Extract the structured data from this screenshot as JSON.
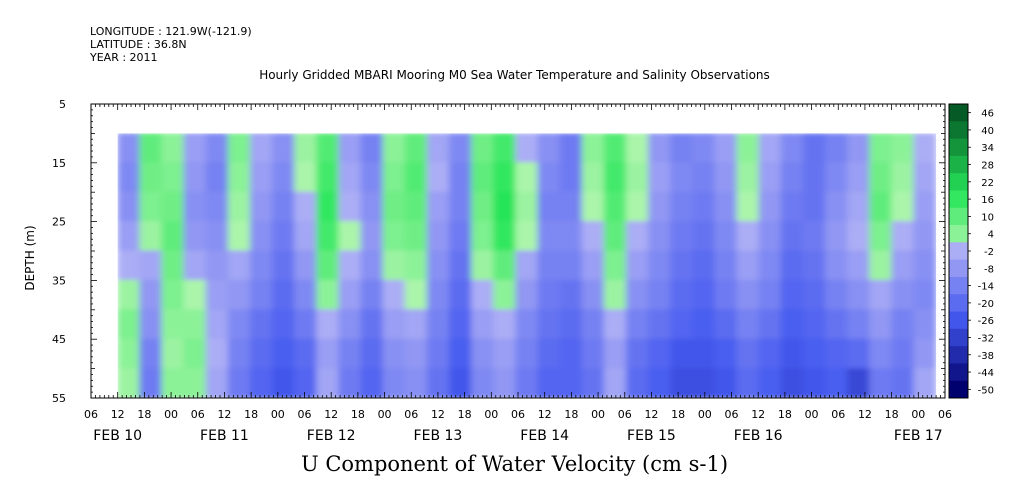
{
  "header": {
    "longitude": "LONGITUDE : 121.9W(-121.9)",
    "latitude": "LATITUDE : 36.8N",
    "year": "YEAR : 2011"
  },
  "chart_data": {
    "type": "heatmap",
    "title": "Hourly Gridded MBARI Mooring M0 Sea Water Temperature and Salinity Observations",
    "xlabel": "U Component of Water Velocity (cm s-1)",
    "ylabel": "DEPTH (m)",
    "x_hour_ticks": [
      "06",
      "12",
      "18",
      "00",
      "06",
      "12",
      "18",
      "00",
      "06",
      "12",
      "18",
      "00",
      "06",
      "12",
      "18",
      "00",
      "06",
      "12",
      "18",
      "00",
      "06",
      "12",
      "18",
      "00",
      "06",
      "12",
      "18",
      "00",
      "06",
      "12",
      "18",
      "00",
      "06"
    ],
    "x_date_ticks": [
      "FEB 10",
      "FEB 11",
      "FEB 12",
      "FEB 13",
      "FEB 14",
      "FEB 15",
      "FEB 16",
      "FEB 17"
    ],
    "xlim_hours_from_feb10_06": [
      0,
      192
    ],
    "y_ticks": [
      "5",
      "15",
      "25",
      "35",
      "45",
      "55"
    ],
    "ylim": [
      55,
      5
    ],
    "data_depth_range": [
      10,
      55
    ],
    "data_time_range_hours": [
      6,
      190
    ],
    "colorbar_ticks": [
      "46",
      "40",
      "34",
      "28",
      "22",
      "16",
      "10",
      "4",
      "-2",
      "-8",
      "-14",
      "-20",
      "-26",
      "-32",
      "-38",
      "-44",
      "-50"
    ],
    "colorbar_range": [
      -50,
      50
    ],
    "cells": [
      [
        -10,
        10,
        4,
        -6,
        -12,
        6,
        -4,
        -10,
        2,
        12,
        -6,
        -14,
        4,
        10,
        -4,
        -12,
        8,
        14,
        -2,
        -10,
        -16,
        4,
        12,
        0,
        -8,
        -14,
        -12,
        -6,
        4,
        -4,
        -12,
        -18,
        -14,
        -8,
        6,
        4,
        -2
      ],
      [
        -12,
        8,
        6,
        -8,
        -14,
        4,
        -6,
        -12,
        0,
        14,
        -4,
        -12,
        6,
        12,
        -2,
        -14,
        10,
        16,
        0,
        -12,
        -16,
        2,
        14,
        2,
        -6,
        -12,
        -14,
        -8,
        2,
        -6,
        -14,
        -18,
        -12,
        -6,
        8,
        2,
        -4
      ],
      [
        -10,
        6,
        8,
        -10,
        -12,
        2,
        -8,
        -14,
        -2,
        16,
        -2,
        -10,
        8,
        10,
        -6,
        -14,
        8,
        18,
        2,
        -14,
        -14,
        0,
        12,
        0,
        -8,
        -14,
        -16,
        -10,
        0,
        -8,
        -16,
        -18,
        -10,
        -4,
        10,
        0,
        -6
      ],
      [
        -6,
        2,
        10,
        -8,
        -10,
        0,
        -10,
        -16,
        -4,
        14,
        0,
        -8,
        6,
        8,
        -8,
        -16,
        6,
        16,
        0,
        -12,
        -12,
        -2,
        10,
        -2,
        -10,
        -16,
        -18,
        -12,
        -2,
        -10,
        -18,
        -16,
        -8,
        -2,
        6,
        -2,
        -8
      ],
      [
        -2,
        -4,
        8,
        -4,
        -8,
        -4,
        -12,
        -18,
        -8,
        10,
        -2,
        -10,
        2,
        4,
        -10,
        -18,
        2,
        10,
        -4,
        -14,
        -14,
        -6,
        6,
        -6,
        -12,
        -18,
        -20,
        -14,
        -6,
        -12,
        -20,
        -18,
        -10,
        -6,
        2,
        -6,
        -10
      ],
      [
        2,
        -8,
        6,
        0,
        -6,
        -8,
        -14,
        -20,
        -12,
        4,
        -6,
        -14,
        -2,
        0,
        -12,
        -20,
        -2,
        4,
        -8,
        -16,
        -18,
        -10,
        2,
        -10,
        -14,
        -20,
        -22,
        -16,
        -10,
        -14,
        -22,
        -20,
        -14,
        -10,
        -4,
        -10,
        -12
      ],
      [
        6,
        -10,
        4,
        4,
        -4,
        -12,
        -18,
        -22,
        -16,
        -2,
        -10,
        -18,
        -6,
        -4,
        -14,
        -22,
        -6,
        -2,
        -12,
        -18,
        -20,
        -14,
        -2,
        -14,
        -18,
        -22,
        -24,
        -20,
        -14,
        -18,
        -24,
        -22,
        -18,
        -14,
        -8,
        -14,
        -10
      ],
      [
        4,
        -14,
        2,
        6,
        -2,
        -14,
        -20,
        -24,
        -20,
        -6,
        -14,
        -20,
        -10,
        -8,
        -16,
        -24,
        -10,
        -6,
        -14,
        -20,
        -22,
        -16,
        -6,
        -18,
        -22,
        -26,
        -26,
        -24,
        -18,
        -22,
        -26,
        -24,
        -22,
        -20,
        -12,
        -16,
        -8
      ],
      [
        2,
        -16,
        4,
        4,
        -4,
        -16,
        -22,
        -26,
        -22,
        -4,
        -16,
        -22,
        -12,
        -10,
        -18,
        -26,
        -12,
        -8,
        -16,
        -22,
        -22,
        -18,
        -4,
        -20,
        -24,
        -28,
        -28,
        -26,
        -20,
        -24,
        -28,
        -26,
        -24,
        -30,
        -16,
        -18,
        -4
      ]
    ]
  }
}
